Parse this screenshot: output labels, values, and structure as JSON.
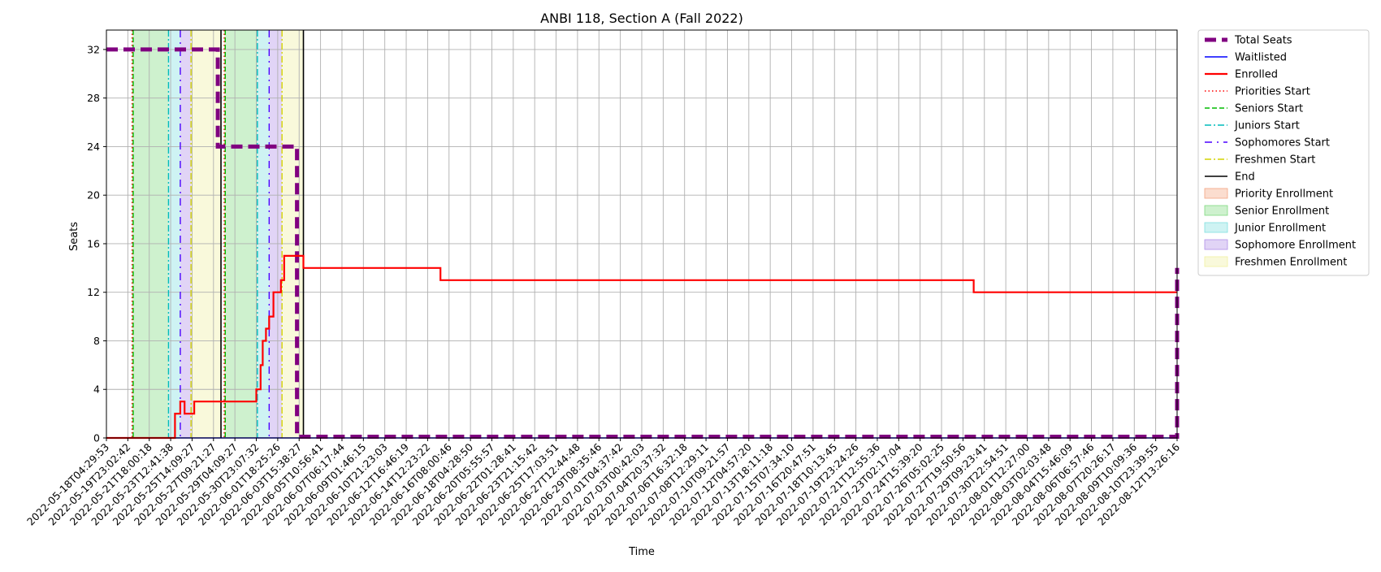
{
  "chart_data": {
    "type": "line",
    "title": "ANBI 118, Section A (Fall 2022)",
    "xlabel": "Time",
    "ylabel": "Seats",
    "ylim": [
      0,
      33.6
    ],
    "grid": true,
    "legend_position": "outside-top-right",
    "y_ticks": [
      0,
      4,
      8,
      12,
      16,
      20,
      24,
      28,
      32
    ],
    "x_ticks": [
      "2022-05-18T04:29:53",
      "2022-05-19T23:02:42",
      "2022-05-21T18:00:18",
      "2022-05-23T12:41:38",
      "2022-05-25T14:09:27",
      "2022-05-27T09:21:27",
      "2022-05-29T04:09:27",
      "2022-05-30T23:07:32",
      "2022-06-01T18:25:26",
      "2022-06-03T15:38:27",
      "2022-06-05T10:56:41",
      "2022-06-07T06:17:44",
      "2022-06-09T01:46:15",
      "2022-06-10T21:23:03",
      "2022-06-12T16:46:19",
      "2022-06-14T12:23:22",
      "2022-06-16T08:00:46",
      "2022-06-18T04:28:50",
      "2022-06-20T05:55:57",
      "2022-06-22T01:28:41",
      "2022-06-23T21:15:42",
      "2022-06-25T17:03:51",
      "2022-06-27T12:44:48",
      "2022-06-29T08:35:46",
      "2022-07-01T04:37:42",
      "2022-07-03T00:42:03",
      "2022-07-04T20:37:32",
      "2022-07-06T16:32:18",
      "2022-07-08T12:29:11",
      "2022-07-10T09:21:57",
      "2022-07-12T04:57:20",
      "2022-07-13T18:11:18",
      "2022-07-15T07:34:10",
      "2022-07-16T20:47:51",
      "2022-07-18T10:13:45",
      "2022-07-19T23:24:26",
      "2022-07-21T12:55:36",
      "2022-07-23T02:17:04",
      "2022-07-24T15:39:20",
      "2022-07-26T05:02:25",
      "2022-07-27T19:50:56",
      "2022-07-29T09:23:41",
      "2022-07-30T22:54:51",
      "2022-08-01T12:27:00",
      "2022-08-03T02:03:48",
      "2022-08-04T15:46:09",
      "2022-08-06T06:57:46",
      "2022-08-07T20:26:17",
      "2022-08-09T10:09:36",
      "2022-08-10T23:39:55",
      "2022-08-12T13:26:16"
    ],
    "x_index_note": "x values are positions along the tick sequence (0 = first tick label, 50 = last tick label)",
    "x_range": [
      0,
      50
    ],
    "series": [
      {
        "name": "Total Seats",
        "color": "#800080",
        "style": "dashed-thick",
        "points": [
          [
            0,
            32
          ],
          [
            5.2,
            32
          ],
          [
            5.2,
            24
          ],
          [
            8.9,
            24
          ],
          [
            8.9,
            0.1
          ],
          [
            50,
            0.1
          ],
          [
            50,
            14
          ]
        ]
      },
      {
        "name": "Waitlisted",
        "color": "#0000ff",
        "style": "solid",
        "points": [
          [
            0,
            0
          ],
          [
            50,
            0
          ]
        ]
      },
      {
        "name": "Enrolled",
        "color": "#ff0000",
        "style": "solid-thick",
        "points": [
          [
            0,
            0
          ],
          [
            3.2,
            0
          ],
          [
            3.2,
            2
          ],
          [
            3.45,
            2
          ],
          [
            3.45,
            3
          ],
          [
            3.65,
            3
          ],
          [
            3.65,
            2
          ],
          [
            4.1,
            2
          ],
          [
            4.1,
            3
          ],
          [
            7.0,
            3
          ],
          [
            7.0,
            4
          ],
          [
            7.2,
            4
          ],
          [
            7.2,
            6
          ],
          [
            7.3,
            6
          ],
          [
            7.3,
            8
          ],
          [
            7.45,
            8
          ],
          [
            7.45,
            9
          ],
          [
            7.6,
            9
          ],
          [
            7.6,
            10
          ],
          [
            7.8,
            10
          ],
          [
            7.8,
            12
          ],
          [
            8.15,
            12
          ],
          [
            8.15,
            13
          ],
          [
            8.3,
            13
          ],
          [
            8.3,
            15
          ],
          [
            9.2,
            15
          ],
          [
            9.2,
            14
          ],
          [
            15.6,
            14
          ],
          [
            15.6,
            13
          ],
          [
            40.5,
            13
          ],
          [
            40.5,
            12
          ],
          [
            50,
            12
          ]
        ]
      }
    ],
    "period_markers": [
      {
        "name": "Priorities Start",
        "color": "#ff0000",
        "style": "dotted",
        "x": [
          1.2,
          5.5
        ]
      },
      {
        "name": "Seniors Start",
        "color": "#00bb00",
        "style": "dashed",
        "x": [
          1.25,
          5.55
        ]
      },
      {
        "name": "Juniors Start",
        "color": "#00bbbb",
        "style": "dashdot",
        "x": [
          2.9,
          7.05
        ]
      },
      {
        "name": "Sophomores Start",
        "color": "#4b00ff",
        "style": "loose-dashdot",
        "x": [
          3.45,
          7.6
        ]
      },
      {
        "name": "Freshmen Start",
        "color": "#d4d400",
        "style": "dashdot",
        "x": [
          3.95,
          8.2
        ]
      },
      {
        "name": "End",
        "color": "#000000",
        "style": "solid",
        "x": [
          5.35,
          9.2
        ]
      }
    ],
    "period_bands": [
      {
        "name": "Priority Enrollment",
        "color": "#f4a582",
        "ranges": [
          [
            1.2,
            1.25
          ],
          [
            5.5,
            5.55
          ]
        ]
      },
      {
        "name": "Senior Enrollment",
        "color": "#7fd97f",
        "ranges": [
          [
            1.25,
            2.9
          ],
          [
            5.55,
            7.05
          ]
        ]
      },
      {
        "name": "Junior Enrollment",
        "color": "#7fdfdf",
        "ranges": [
          [
            2.9,
            3.45
          ],
          [
            7.05,
            7.6
          ]
        ]
      },
      {
        "name": "Sophomore Enrollment",
        "color": "#b08fe8",
        "ranges": [
          [
            3.45,
            3.95
          ],
          [
            7.6,
            8.2
          ]
        ]
      },
      {
        "name": "Freshmen Enrollment",
        "color": "#f0f0a0",
        "ranges": [
          [
            3.95,
            5.35
          ],
          [
            8.2,
            9.2
          ]
        ]
      }
    ],
    "legend": [
      {
        "label": "Total Seats",
        "kind": "line",
        "color": "#800080",
        "style": "dashed-thick"
      },
      {
        "label": "Waitlisted",
        "kind": "line",
        "color": "#0000ff",
        "style": "solid"
      },
      {
        "label": "Enrolled",
        "kind": "line",
        "color": "#ff0000",
        "style": "solid-thick"
      },
      {
        "label": "Priorities Start",
        "kind": "line",
        "color": "#ff0000",
        "style": "dotted"
      },
      {
        "label": "Seniors Start",
        "kind": "line",
        "color": "#00bb00",
        "style": "dashed"
      },
      {
        "label": "Juniors Start",
        "kind": "line",
        "color": "#00bbbb",
        "style": "dashdot"
      },
      {
        "label": "Sophomores Start",
        "kind": "line",
        "color": "#4b00ff",
        "style": "loose-dashdot"
      },
      {
        "label": "Freshmen Start",
        "kind": "line",
        "color": "#d4d400",
        "style": "dashdot"
      },
      {
        "label": "End",
        "kind": "line",
        "color": "#000000",
        "style": "solid"
      },
      {
        "label": "Priority Enrollment",
        "kind": "patch",
        "color": "#f4a582"
      },
      {
        "label": "Senior Enrollment",
        "kind": "patch",
        "color": "#7fd97f"
      },
      {
        "label": "Junior Enrollment",
        "kind": "patch",
        "color": "#7fdfdf"
      },
      {
        "label": "Sophomore Enrollment",
        "kind": "patch",
        "color": "#b08fe8"
      },
      {
        "label": "Freshmen Enrollment",
        "kind": "patch",
        "color": "#f0f0a0"
      }
    ]
  }
}
